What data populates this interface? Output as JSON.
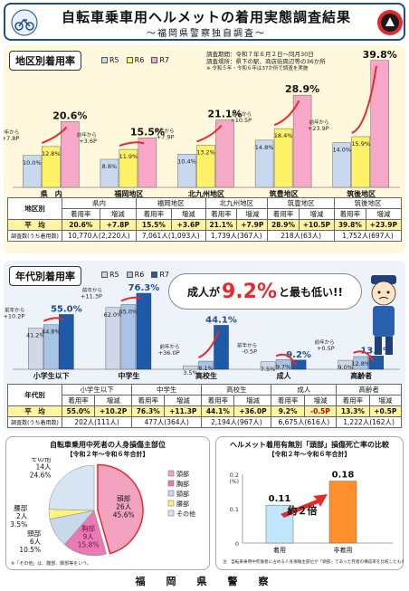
{
  "header": {
    "title": "自転車乗車用ヘルメットの着用実態調査結果",
    "subtitle": "～福岡県警察独自調査～"
  },
  "section1": {
    "title": "地区別着用率",
    "legend": [
      "R5",
      "R6",
      "R7"
    ],
    "notes": [
      "調査期間：令和７年６月２日～同月30日",
      "調査場所：県下の駅、商店街周辺等の36か所",
      "※ 令和５年・令和６年は37か所で調査を実施"
    ]
  },
  "section2": {
    "title": "年代別着用率",
    "legend": [
      "R5",
      "R6",
      "R7"
    ],
    "banner_pre": "成人が",
    "banner_big": "9.2%",
    "banner_post": "と最も低い!!"
  },
  "colors": {
    "r5": "#c8d8ee",
    "r6": "#fff266",
    "r7": "#f7a8c8",
    "r5b": "#d0d8e8",
    "r6b": "#a9c3e6",
    "r7b": "#1f5aa8",
    "accent": "#e8282b"
  },
  "chart_data": [
    {
      "type": "bar",
      "categories": [
        "県　内",
        "福岡地区",
        "北九州地区",
        "筑豊地区",
        "筑後地区"
      ],
      "series": [
        {
          "name": "R5",
          "values": [
            10.0,
            8.8,
            10.4,
            14.8,
            14.0
          ],
          "labels": [
            "10.0%",
            "8.8%",
            "10.4%",
            "14.8%",
            "14.0%"
          ]
        },
        {
          "name": "R6",
          "values": [
            12.8,
            11.9,
            13.2,
            18.4,
            15.9
          ],
          "labels": [
            "12.8%",
            "11.9%",
            "13.2%",
            "18.4%",
            "15.9%"
          ]
        },
        {
          "name": "R7",
          "values": [
            20.6,
            15.5,
            21.1,
            28.9,
            39.8
          ],
          "labels": [
            "20.6%",
            "15.5%",
            "21.1%",
            "28.9%",
            "39.8%"
          ]
        }
      ],
      "annotations": [
        {
          "line1": "前年から",
          "line2": "+7.8P"
        },
        {
          "line1": "前年から",
          "line2": "+3.6P"
        },
        {
          "line1": "前年から",
          "line2": "+7.9P"
        },
        {
          "line1": "前年から",
          "line2": "+10.5P"
        },
        {
          "line1": "前年から",
          "line2": "+23.9P"
        }
      ],
      "ylim": [
        0,
        42
      ]
    },
    {
      "type": "bar",
      "categories": [
        "小学生以下",
        "中学生",
        "高校生",
        "成人",
        "高齢者"
      ],
      "series": [
        {
          "name": "R5",
          "values": [
            41.2,
            62.0,
            3.5,
            7.5,
            9.0
          ],
          "labels": [
            "41.2%",
            "62.0%",
            "3.5%",
            "7.5%",
            "9.0%"
          ]
        },
        {
          "name": "R6",
          "values": [
            44.8,
            65.0,
            8.1,
            9.7,
            12.8
          ],
          "labels": [
            "44.8%",
            "65.0%",
            "8.1%",
            "9.7%",
            "12.8%"
          ]
        },
        {
          "name": "R7",
          "values": [
            55.0,
            76.3,
            44.1,
            9.2,
            13.3
          ],
          "labels": [
            "55.0%",
            "76.3%",
            "44.1%",
            "9.2%",
            "13.3%"
          ]
        }
      ],
      "annotations": [
        {
          "line1": "前年から",
          "line2": "+10.2P"
        },
        {
          "line1": "前年から",
          "line2": "+11.3P"
        },
        {
          "line1": "前年から",
          "line2": "+36.0P"
        },
        {
          "line1": "前年から",
          "line2": "-0.5P"
        },
        {
          "line1": "前年から",
          "line2": "+0.5P"
        }
      ],
      "ylim": [
        0,
        80
      ]
    },
    {
      "type": "pie",
      "title": "自転車乗用中死者の人身損傷主部位",
      "subtitle": "【令和２年～令和６年合計】",
      "slices": [
        {
          "name": "頭部",
          "count": "26人",
          "value": 45.6,
          "color": "#f3a3c0"
        },
        {
          "name": "胸部",
          "count": "9人",
          "value": 15.8,
          "color": "#e87ab4"
        },
        {
          "name": "頸部",
          "count": "6人",
          "value": 10.5,
          "color": "#c9d8ea"
        },
        {
          "name": "腰部",
          "count": "2人",
          "value": 3.5,
          "color": "#fff47a"
        },
        {
          "name": "その他",
          "count": "14人",
          "value": 24.6,
          "color": "#d7e4f2"
        }
      ],
      "legend": [
        "頭部",
        "胸部",
        "頸部",
        "腰部",
        "その他"
      ],
      "note": "※「その他」は、腹部、脚部等をいう。"
    },
    {
      "type": "bar",
      "title": "ヘルメット着用有無別「頭部」損傷死亡率の比較",
      "subtitle": "【令和２年～令和６年合計】",
      "ylabel": "(%)",
      "categories": [
        "着用",
        "非着用"
      ],
      "values": [
        0.11,
        0.18
      ],
      "labels": [
        "0.11",
        "0.18"
      ],
      "ylim": [
        0,
        0.2
      ],
      "yticks": [
        "0",
        "0.1",
        "0.2"
      ],
      "callout": "約２倍",
      "note": "注　自転車乗用中死傷者に占める人身損傷主部位が「頭部」であった死者の構成率を比較したもの"
    }
  ],
  "tables": {
    "area": {
      "header_row": "地区別",
      "groups": [
        "県内",
        "福岡地区",
        "北九州地区",
        "筑豊地区",
        "筑後地区"
      ],
      "subheads": [
        "着用率",
        "増減"
      ],
      "avg_label": "平　均",
      "avg": [
        "20.6%",
        "+7.8P",
        "15.5%",
        "+3.6P",
        "21.1%",
        "+7.9P",
        "28.9%",
        "+10.5P",
        "39.8%",
        "+23.9P"
      ],
      "count_label": "調査数(うち着用数)",
      "counts": [
        "10,770人(2,220人)",
        "7,061人(1,093人)",
        "1,739人(367人)",
        "218人(63人)",
        "1,752人(697人)"
      ]
    },
    "age": {
      "header_row": "年代別",
      "groups": [
        "小学生以下",
        "中学生",
        "高校生",
        "成人",
        "高齢者"
      ],
      "subheads": [
        "着用率",
        "増減"
      ],
      "avg_label": "平　均",
      "avg": [
        "55.0%",
        "+10.2P",
        "76.3%",
        "+11.3P",
        "44.1%",
        "+36.0P",
        "9.2%",
        "-0.5P",
        "13.3%",
        "+0.5P"
      ],
      "count_label": "調査数(うち着用数)",
      "counts": [
        "202人(111人)",
        "477人(364人)",
        "2,194人(967人)",
        "6,675人(616人)",
        "1,222人(162人)"
      ]
    }
  },
  "footer": "福　岡　県　警　察"
}
